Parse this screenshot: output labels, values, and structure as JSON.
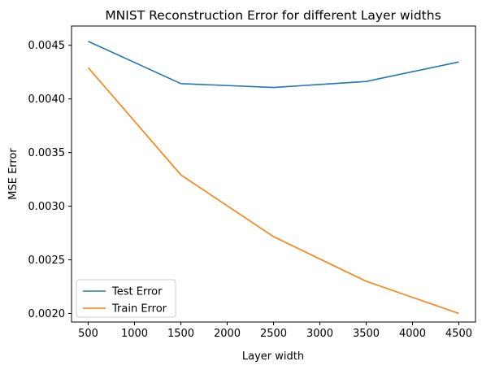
{
  "chart_data": {
    "type": "line",
    "title": "MNIST Reconstruction Error for different Layer widths",
    "xlabel": "Layer width",
    "ylabel": "MSE Error",
    "x": [
      500,
      1500,
      2500,
      3500,
      4500
    ],
    "xlim": [
      320,
      4680
    ],
    "ylim": [
      0.00192,
      0.00468
    ],
    "xticks": [
      500,
      1000,
      1500,
      2000,
      2500,
      3000,
      3500,
      4000,
      4500
    ],
    "xtick_labels": [
      "500",
      "1000",
      "1500",
      "2000",
      "2500",
      "3000",
      "3500",
      "4000",
      "4500"
    ],
    "yticks": [
      0.002,
      0.0025,
      0.003,
      0.0035,
      0.004,
      0.0045
    ],
    "ytick_labels": [
      "0.0020",
      "0.0025",
      "0.0030",
      "0.0035",
      "0.0040",
      "0.0045"
    ],
    "grid": false,
    "legend_position": "lower-left",
    "series": [
      {
        "name": "Test Error",
        "color": "#1f77b4",
        "values": [
          0.004537,
          0.004143,
          0.004107,
          0.004163,
          0.004345
        ]
      },
      {
        "name": "Train Error",
        "color": "#ff7f0e",
        "values": [
          0.004292,
          0.003292,
          0.002716,
          0.0023,
          0.002
        ]
      }
    ]
  }
}
